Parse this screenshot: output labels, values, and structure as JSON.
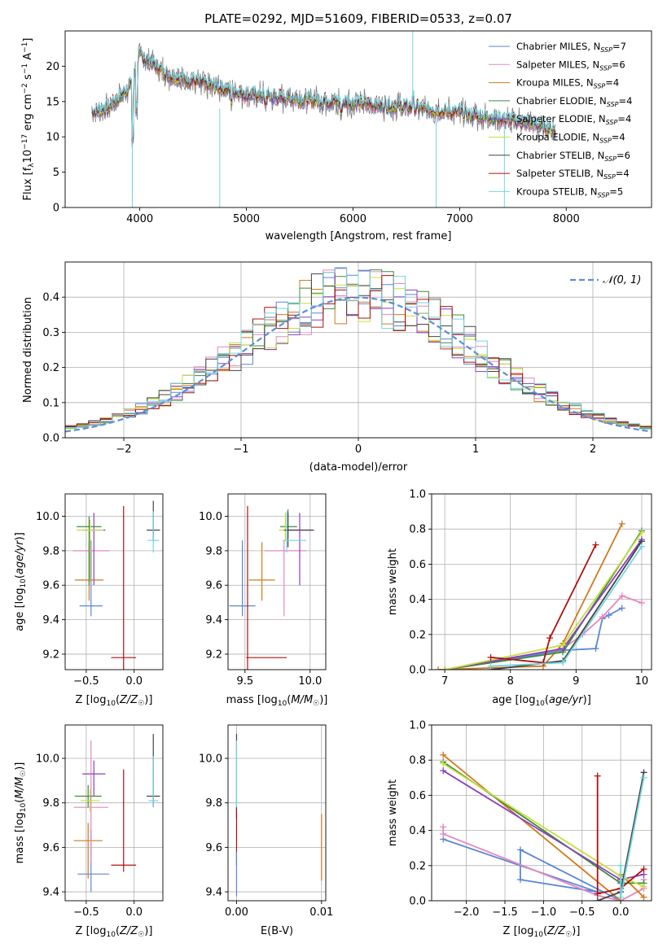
{
  "figure_title": "PLATE=0292, MJD=51609, FIBERID=0533, z=0.07",
  "colors": {
    "Chabrier MILES": "#5b87d6",
    "Salpeter MILES": "#e487c0",
    "Kroupa MILES": "#d07a1e",
    "Chabrier ELODIE": "#3f8a3f",
    "Salpeter ELODIE": "#8a3fc2",
    "Kroupa ELODIE": "#c6df3a",
    "Chabrier STELIB": "#444444",
    "Salpeter STELIB": "#b01010",
    "Kroupa STELIB": "#74d4e0",
    "data": "#7f7f7f",
    "gaussian": "#5b8fd6"
  },
  "chart_data": [
    {
      "id": "spectrum",
      "type": "line",
      "title": "PLATE=0292, MJD=51609, FIBERID=0533, z=0.07",
      "xlabel": "wavelength [Angstrom, rest frame]",
      "ylabel": "Flux [f_λ 10^-17 erg cm^-2 s^-1 A^-1]",
      "xlim": [
        3300,
        8800
      ],
      "ylim": [
        0,
        25
      ],
      "xticks": [
        4000,
        5000,
        6000,
        7000,
        8000
      ],
      "yticks": [
        0,
        5,
        10,
        15,
        20
      ],
      "legend_position": "top-right",
      "grid": false,
      "continuum_knots": [
        [
          3550,
          13.5
        ],
        [
          3700,
          14
        ],
        [
          3900,
          17
        ],
        [
          4000,
          21.5
        ],
        [
          4100,
          20.5
        ],
        [
          4300,
          18.5
        ],
        [
          4600,
          17.5
        ],
        [
          5000,
          16
        ],
        [
          5500,
          15.3
        ],
        [
          6000,
          14.8
        ],
        [
          6500,
          14.2
        ],
        [
          7000,
          13.3
        ],
        [
          7500,
          12.3
        ],
        [
          7900,
          11
        ]
      ],
      "series": [
        {
          "name": "Chabrier MILES",
          "ssp": "7"
        },
        {
          "name": "Salpeter MILES",
          "ssp": "6"
        },
        {
          "name": "Kroupa MILES",
          "ssp": "4"
        },
        {
          "name": "Chabrier ELODIE",
          "ssp": "4"
        },
        {
          "name": "Salpeter ELODIE",
          "ssp": "4"
        },
        {
          "name": "Kroupa ELODIE",
          "ssp": "4"
        },
        {
          "name": "Chabrier STELIB",
          "ssp": "6"
        },
        {
          "name": "Salpeter STELIB",
          "ssp": "4"
        },
        {
          "name": "Kroupa STELIB",
          "ssp": "5"
        }
      ]
    },
    {
      "id": "residuals",
      "type": "line",
      "xlabel": "(data-model)/error",
      "ylabel": "Normed distribution",
      "xlim": [
        -2.5,
        2.5
      ],
      "ylim": [
        0,
        0.5
      ],
      "xticks": [
        -2,
        -1,
        0,
        1,
        2
      ],
      "yticks": [
        0.0,
        0.1,
        0.2,
        0.3,
        0.4
      ],
      "grid": true,
      "legend_position": "top-right",
      "legend_label": "𝒩(0, 1)",
      "bin_width": 0.1
    },
    {
      "id": "age-Z",
      "type": "scatter",
      "xlabel": "Z [log₁₀(Z/Z☉)]",
      "ylabel": "age  [log₁₀(age/yr)]",
      "xlim": [
        -0.72,
        0.3
      ],
      "ylim": [
        9.11,
        10.13
      ],
      "xticks": [
        -0.5,
        0.0
      ],
      "yticks": [
        9.2,
        9.4,
        9.6,
        9.8,
        10.0
      ],
      "grid": true,
      "points": [
        {
          "series": "Chabrier MILES",
          "x": -0.45,
          "y": 9.48,
          "xerr": [
            0.12,
            0.12
          ],
          "yerr": [
            0.06,
            0.38
          ]
        },
        {
          "series": "Kroupa MILES",
          "x": -0.47,
          "y": 9.63,
          "xerr": [
            0.15,
            0.15
          ],
          "yerr": [
            0.12,
            0.22
          ]
        },
        {
          "series": "Salpeter MILES",
          "x": -0.46,
          "y": 9.8,
          "xerr": [
            0.18,
            0.2
          ],
          "yerr": [
            0.12,
            0.1
          ]
        },
        {
          "series": "Salpeter ELODIE",
          "x": -0.42,
          "y": 9.92,
          "xerr": [
            0.12,
            0.12
          ],
          "yerr": [
            0.32,
            0.1
          ]
        },
        {
          "series": "Chabrier ELODIE",
          "x": -0.47,
          "y": 9.94,
          "xerr": [
            0.13,
            0.13
          ],
          "yerr": [
            0.34,
            0.06
          ]
        },
        {
          "series": "Kroupa ELODIE",
          "x": -0.46,
          "y": 9.92,
          "xerr": [
            0.14,
            0.14
          ],
          "yerr": [
            0.3,
            0.06
          ]
        },
        {
          "series": "Salpeter STELIB",
          "x": -0.11,
          "y": 9.18,
          "xerr": [
            0.13,
            0.13
          ],
          "yerr": [
            0.07,
            0.88
          ]
        },
        {
          "series": "Chabrier STELIB",
          "x": 0.2,
          "y": 9.92,
          "xerr": [
            0.07,
            0.07
          ],
          "yerr": [
            0.06,
            0.17
          ]
        },
        {
          "series": "Kroupa STELIB",
          "x": 0.2,
          "y": 9.86,
          "xerr": [
            0.06,
            0.06
          ],
          "yerr": [
            0.07,
            0.17
          ]
        }
      ]
    },
    {
      "id": "age-mass",
      "type": "scatter",
      "xlabel": "mass [log₁₀(M/M☉)]",
      "ylabel": "",
      "xlim": [
        9.37,
        10.12
      ],
      "ylim": [
        9.11,
        10.13
      ],
      "xticks": [
        9.5,
        10.0
      ],
      "yticks": [
        9.2,
        9.4,
        9.6,
        9.8,
        10.0
      ],
      "grid": true,
      "points": [
        {
          "series": "Chabrier MILES",
          "x": 9.48,
          "y": 9.48,
          "xerr": [
            0.1,
            0.1
          ],
          "yerr": [
            0.06,
            0.38
          ]
        },
        {
          "series": "Kroupa MILES",
          "x": 9.63,
          "y": 9.63,
          "xerr": [
            0.1,
            0.1
          ],
          "yerr": [
            0.12,
            0.22
          ]
        },
        {
          "series": "Salpeter MILES",
          "x": 9.8,
          "y": 9.8,
          "xerr": [
            0.15,
            0.17
          ],
          "yerr": [
            0.38,
            0.06
          ]
        },
        {
          "series": "Salpeter ELODIE",
          "x": 9.92,
          "y": 9.92,
          "xerr": [
            0.1,
            0.1
          ],
          "yerr": [
            0.32,
            0.1
          ]
        },
        {
          "series": "Chabrier ELODIE",
          "x": 9.83,
          "y": 9.94,
          "xerr": [
            0.06,
            0.07
          ],
          "yerr": [
            0.06,
            0.1
          ]
        },
        {
          "series": "Kroupa ELODIE",
          "x": 9.81,
          "y": 9.92,
          "xerr": [
            0.05,
            0.05
          ],
          "yerr": [
            0.06,
            0.1
          ]
        },
        {
          "series": "Salpeter STELIB",
          "x": 9.52,
          "y": 9.18,
          "xerr": [
            0.01,
            0.3
          ],
          "yerr": [
            0.07,
            0.88
          ]
        },
        {
          "series": "Chabrier STELIB",
          "x": 9.83,
          "y": 9.92,
          "xerr": [
            0.03,
            0.2
          ],
          "yerr": [
            0.1,
            0.1
          ]
        },
        {
          "series": "Kroupa STELIB",
          "x": 9.82,
          "y": 9.86,
          "xerr": [
            0.03,
            0.15
          ],
          "yerr": [
            0.07,
            0.17
          ]
        }
      ]
    },
    {
      "id": "massweight-age",
      "type": "line",
      "xlabel": "age  [log₁₀(age/yr)]",
      "ylabel": "mass weight",
      "xlim": [
        6.8,
        10.15
      ],
      "ylim": [
        0,
        1
      ],
      "xticks": [
        7,
        8,
        9,
        10
      ],
      "yticks": [
        0.0,
        0.2,
        0.4,
        0.6,
        0.8,
        1.0
      ],
      "grid": true,
      "series": [
        {
          "name": "Chabrier MILES",
          "x": [
            7.0,
            8.8,
            9.3,
            9.4,
            9.5,
            9.7
          ],
          "y": [
            0.0,
            0.11,
            0.12,
            0.29,
            0.31,
            0.35
          ]
        },
        {
          "name": "Salpeter MILES",
          "x": [
            7.0,
            8.8,
            9.1,
            9.4,
            9.7,
            10.0
          ],
          "y": [
            0.0,
            0.12,
            0.2,
            0.3,
            0.42,
            0.38
          ]
        },
        {
          "name": "Kroupa MILES",
          "x": [
            6.9,
            8.5,
            8.8,
            9.7
          ],
          "y": [
            0.0,
            0.02,
            0.15,
            0.83
          ]
        },
        {
          "name": "Chabrier ELODIE",
          "x": [
            7.0,
            8.8,
            10.0
          ],
          "y": [
            0.0,
            0.1,
            0.79
          ]
        },
        {
          "name": "Salpeter ELODIE",
          "x": [
            7.0,
            8.8,
            10.0
          ],
          "y": [
            0.0,
            0.12,
            0.74
          ]
        },
        {
          "name": "Kroupa ELODIE",
          "x": [
            7.0,
            8.8,
            10.0
          ],
          "y": [
            0.0,
            0.14,
            0.78
          ]
        },
        {
          "name": "Chabrier STELIB",
          "x": [
            7.7,
            8.8,
            10.0
          ],
          "y": [
            0.0,
            0.05,
            0.73
          ]
        },
        {
          "name": "Salpeter STELIB",
          "x": [
            7.7,
            8.5,
            8.6,
            9.3
          ],
          "y": [
            0.07,
            0.04,
            0.18,
            0.71
          ]
        },
        {
          "name": "Kroupa STELIB",
          "x": [
            7.7,
            8.8,
            10.0
          ],
          "y": [
            0.02,
            0.04,
            0.7
          ]
        }
      ]
    },
    {
      "id": "mass-Z",
      "type": "scatter",
      "xlabel": "Z [log₁₀(Z/Z☉)]",
      "ylabel": "mass [log₁₀(M/M☉)]",
      "xlim": [
        -0.72,
        0.3
      ],
      "ylim": [
        9.36,
        10.15
      ],
      "xticks": [
        -0.5,
        0.0
      ],
      "yticks": [
        9.4,
        9.6,
        9.8,
        10.0
      ],
      "grid": true,
      "points": [
        {
          "series": "Chabrier MILES",
          "x": -0.45,
          "y": 9.48,
          "xerr": [
            0.14,
            0.19
          ],
          "yerr": [
            0.08,
            0.2
          ]
        },
        {
          "series": "Kroupa MILES",
          "x": -0.48,
          "y": 9.63,
          "xerr": [
            0.15,
            0.15
          ],
          "yerr": [
            0.17,
            0.08
          ]
        },
        {
          "series": "Salpeter MILES",
          "x": -0.45,
          "y": 9.78,
          "xerr": [
            0.18,
            0.18
          ],
          "yerr": [
            0.25,
            0.3
          ]
        },
        {
          "series": "Salpeter ELODIE",
          "x": -0.42,
          "y": 9.93,
          "xerr": [
            0.12,
            0.12
          ],
          "yerr": [
            0.1,
            0.06
          ]
        },
        {
          "series": "Chabrier ELODIE",
          "x": -0.48,
          "y": 9.83,
          "xerr": [
            0.14,
            0.14
          ],
          "yerr": [
            0.05,
            0.05
          ]
        },
        {
          "series": "Kroupa ELODIE",
          "x": -0.46,
          "y": 9.81,
          "xerr": [
            0.1,
            0.1
          ],
          "yerr": [
            0.05,
            0.05
          ]
        },
        {
          "series": "Salpeter STELIB",
          "x": -0.11,
          "y": 9.52,
          "xerr": [
            0.13,
            0.13
          ],
          "yerr": [
            0.03,
            0.43
          ]
        },
        {
          "series": "Chabrier STELIB",
          "x": 0.2,
          "y": 9.83,
          "xerr": [
            0.07,
            0.07
          ],
          "yerr": [
            0.05,
            0.28
          ]
        },
        {
          "series": "Kroupa STELIB",
          "x": 0.2,
          "y": 9.81,
          "xerr": [
            0.05,
            0.05
          ],
          "yerr": [
            0.03,
            0.2
          ]
        }
      ]
    },
    {
      "id": "mass-EBV",
      "type": "scatter",
      "xlabel": "E(B-V)",
      "ylabel": "",
      "xlim": [
        -0.001,
        0.0105
      ],
      "ylim": [
        9.36,
        10.15
      ],
      "xticks": [
        0.0,
        0.01
      ],
      "xticklabels": [
        "0.00",
        "0.01"
      ],
      "yticks": [
        9.4,
        9.6,
        9.8,
        10.0
      ],
      "grid": true,
      "points": [
        {
          "series": "Chabrier STELIB",
          "x": 0.0,
          "y": 9.83,
          "yerr": [
            0.1,
            0.28
          ]
        },
        {
          "series": "Kroupa STELIB",
          "x": 0.0,
          "y": 9.81,
          "yerr": [
            0.05,
            0.27
          ]
        },
        {
          "series": "Salpeter STELIB",
          "x": 0.0,
          "y": 9.6,
          "yerr": [
            0.08,
            0.18
          ]
        },
        {
          "series": "Chabrier MILES",
          "x": 0.0,
          "y": 9.48,
          "yerr": [
            0.1,
            0.1
          ]
        },
        {
          "series": "Kroupa MILES",
          "x": 0.01,
          "y": 9.6,
          "yerr": [
            0.15,
            0.15
          ]
        }
      ]
    },
    {
      "id": "massweight-Z",
      "type": "line",
      "xlabel": "Z [log₁₀(Z/Z☉)]",
      "ylabel": "mass weight",
      "xlim": [
        -2.45,
        0.4
      ],
      "ylim": [
        0,
        1
      ],
      "xticks": [
        -2.0,
        -1.5,
        -1.0,
        -0.5,
        0.0
      ],
      "yticks": [
        0.0,
        0.2,
        0.4,
        0.6,
        0.8,
        1.0
      ],
      "grid": true,
      "series": [
        {
          "name": "Chabrier MILES",
          "x": [
            -2.3,
            -0.3,
            -1.3,
            -1.3,
            0.0,
            0.0
          ],
          "y": [
            0.35,
            0.05,
            0.12,
            0.29,
            0.0,
            0.11
          ]
        },
        {
          "name": "Salpeter MILES",
          "x": [
            -2.3,
            -2.3,
            -0.3,
            0.0,
            0.3,
            0.3
          ],
          "y": [
            0.42,
            0.38,
            0.03,
            0.0,
            0.07,
            0.12
          ]
        },
        {
          "name": "Kroupa MILES",
          "x": [
            -2.3,
            0.0,
            0.0,
            0.3
          ],
          "y": [
            0.83,
            0.0,
            0.15,
            0.02
          ]
        },
        {
          "name": "Chabrier ELODIE",
          "x": [
            -2.3,
            0.0,
            0.3
          ],
          "y": [
            0.79,
            0.1,
            0.1
          ]
        },
        {
          "name": "Salpeter ELODIE",
          "x": [
            -2.3,
            0.0,
            0.3
          ],
          "y": [
            0.74,
            0.12,
            0.15
          ]
        },
        {
          "name": "Kroupa ELODIE",
          "x": [
            -2.3,
            0.0,
            0.3
          ],
          "y": [
            0.78,
            0.14,
            0.08
          ]
        },
        {
          "name": "Chabrier STELIB",
          "x": [
            -0.3,
            0.0,
            0.3
          ],
          "y": [
            0.0,
            0.05,
            0.73
          ]
        },
        {
          "name": "Salpeter STELIB",
          "x": [
            -0.3,
            -0.3,
            0.0,
            0.3
          ],
          "y": [
            0.71,
            0.04,
            0.07,
            0.18
          ]
        },
        {
          "name": "Kroupa STELIB",
          "x": [
            0.0,
            0.0,
            0.3
          ],
          "y": [
            0.2,
            0.02,
            0.7
          ]
        }
      ]
    }
  ]
}
